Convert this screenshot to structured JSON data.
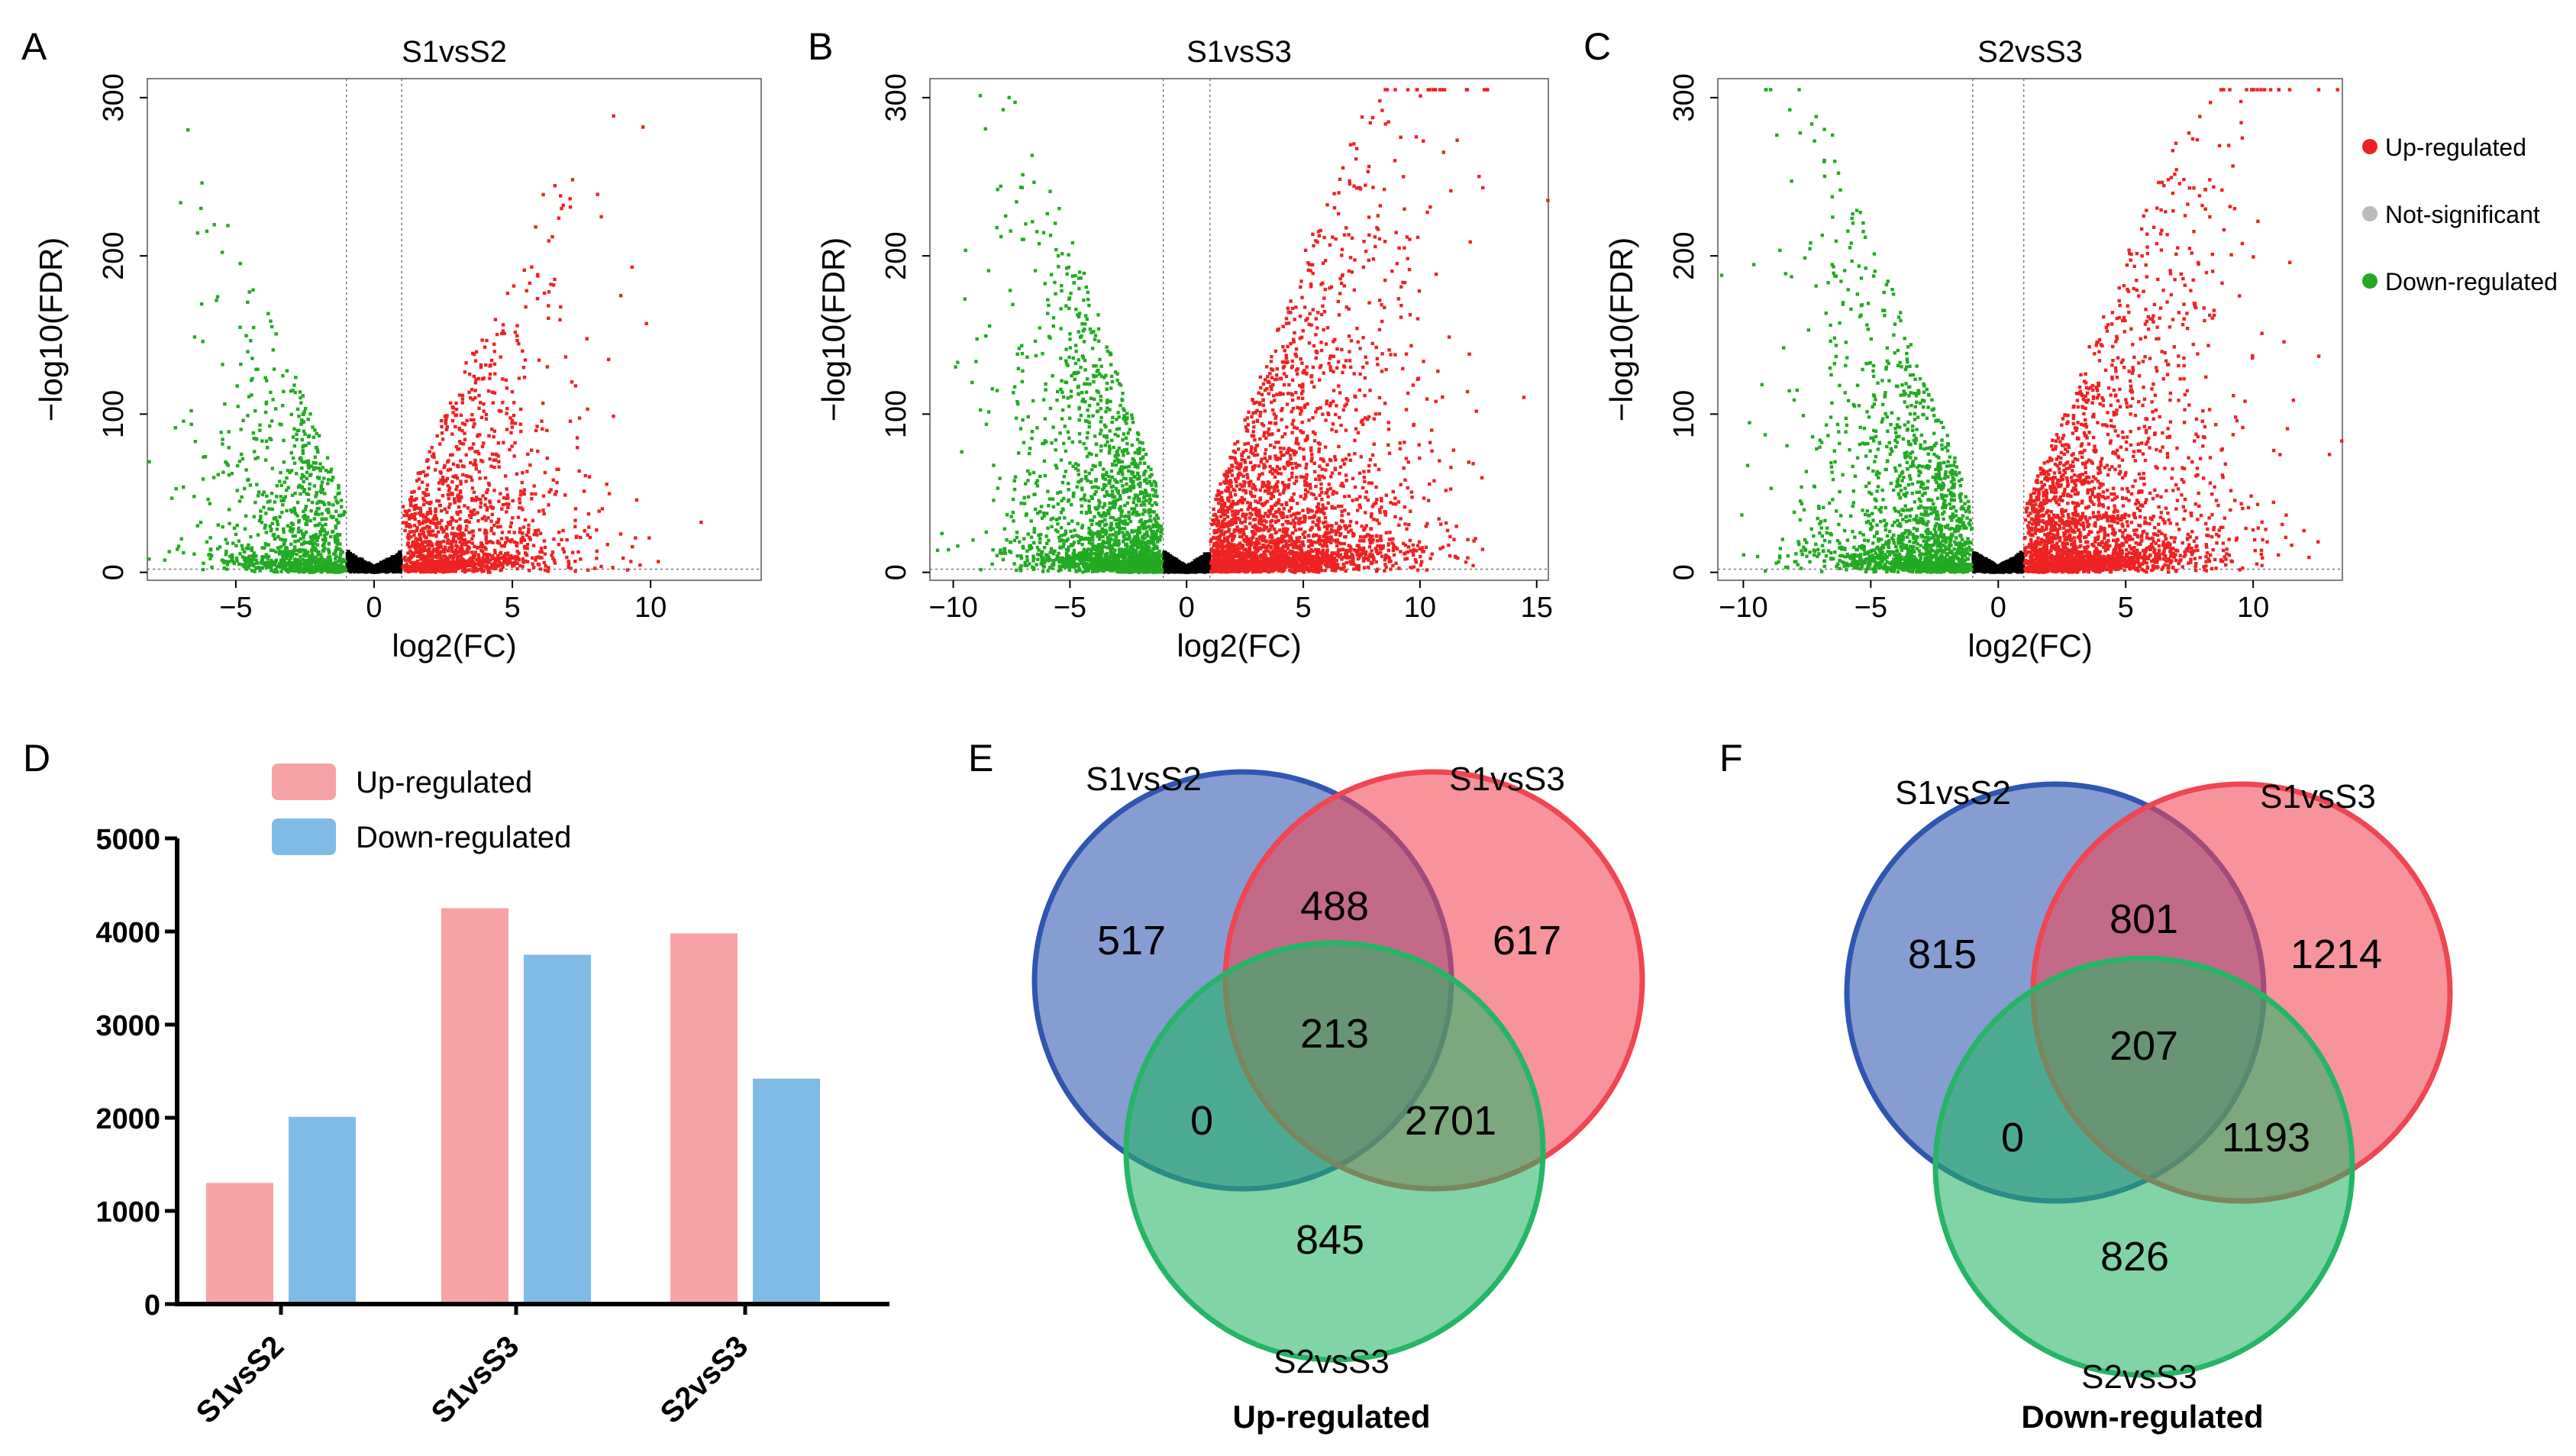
{
  "colors": {
    "up": "#ee2222",
    "not_significant": "#000000",
    "legend_not_significant": "#bbbbbb",
    "down": "#22aa22",
    "bar_up": "#f7a3a6",
    "bar_down": "#80bbe6",
    "venn_s1vss2": "#2f56b0",
    "venn_s1vss3": "#f04552",
    "venn_s2vss3": "#26b566"
  },
  "chart_data": [
    {
      "panel": "A",
      "type": "scatter",
      "title": "S1vsS2",
      "xlabel": "log2(FC)",
      "ylabel": "−log10(FDR)",
      "xlim": [
        -8.2,
        14
      ],
      "ylim": [
        -5,
        312
      ],
      "xticks": [
        -5,
        0,
        5,
        10
      ],
      "xtick_labels": [
        "−5",
        "0",
        "5",
        "10"
      ],
      "yticks": [
        0,
        100,
        200,
        300
      ],
      "ytick_labels": [
        "0",
        "100",
        "200",
        "300"
      ],
      "fc_threshold": 1,
      "fdr_threshold_line": 2,
      "x_spread": [
        7.5,
        9
      ],
      "y_max": 300,
      "density": 1.0
    },
    {
      "panel": "B",
      "type": "scatter",
      "title": "S1vsS3",
      "xlabel": "log2(FC)",
      "ylabel": "−log10(FDR)",
      "xlim": [
        -11,
        15.5
      ],
      "ylim": [
        -5,
        312
      ],
      "xticks": [
        -10,
        -5,
        0,
        5,
        10,
        15
      ],
      "xtick_labels": [
        "−10",
        "−5",
        "0",
        "5",
        "10",
        "15"
      ],
      "yticks": [
        0,
        100,
        200,
        300
      ],
      "ytick_labels": [
        "0",
        "100",
        "200",
        "300"
      ],
      "fc_threshold": 1,
      "fdr_threshold_line": 2,
      "x_spread": [
        10,
        13
      ],
      "y_max": 305,
      "density": 2.0
    },
    {
      "panel": "C",
      "type": "scatter",
      "title": "S2vsS3",
      "xlabel": "log2(FC)",
      "ylabel": "−log10(FDR)",
      "xlim": [
        -11,
        13.5
      ],
      "ylim": [
        -5,
        312
      ],
      "xticks": [
        -10,
        -5,
        0,
        5,
        10
      ],
      "xtick_labels": [
        "−10",
        "−5",
        "0",
        "5",
        "10"
      ],
      "yticks": [
        0,
        100,
        200,
        300
      ],
      "ytick_labels": [
        "0",
        "100",
        "200",
        "300"
      ],
      "fc_threshold": 1,
      "fdr_threshold_line": 2,
      "x_spread": [
        10,
        12
      ],
      "y_max": 305,
      "density": 1.7
    },
    {
      "panel": "D",
      "type": "bar",
      "categories": [
        "S1vsS2",
        "S1vsS3",
        "S2vsS3"
      ],
      "series": [
        {
          "name": "Up-regulated",
          "values": [
            1300,
            4250,
            3980
          ]
        },
        {
          "name": "Down-regulated",
          "values": [
            2010,
            3750,
            2420
          ]
        }
      ],
      "ylim": [
        0,
        5000
      ],
      "yticks": [
        0,
        1000,
        2000,
        3000,
        4000,
        5000
      ],
      "ytick_labels": [
        "0",
        "1000",
        "2000",
        "3000",
        "4000",
        "5000"
      ]
    },
    {
      "panel": "E",
      "type": "venn",
      "caption": "Up-regulated",
      "sets": [
        "S1vsS2",
        "S1vsS3",
        "S2vsS3"
      ],
      "regions": {
        "only_a": "517",
        "only_b": "617",
        "only_c": "845",
        "ab": "488",
        "ac": "0",
        "bc": "2701",
        "abc": "213"
      }
    },
    {
      "panel": "F",
      "type": "venn",
      "caption": "Down-regulated",
      "sets": [
        "S1vsS2",
        "S1vsS3",
        "S2vsS3"
      ],
      "regions": {
        "only_a": "815",
        "only_b": "1214",
        "only_c": "826",
        "ab": "801",
        "ac": "0",
        "bc": "1193",
        "abc": "207"
      }
    }
  ],
  "panel_letters": [
    "A",
    "B",
    "C",
    "D",
    "E",
    "F"
  ],
  "volcano_legend": {
    "items": [
      {
        "label": "Up-regulated",
        "color_key": "up"
      },
      {
        "label": "Not-significant",
        "color_key": "legend_not_significant"
      },
      {
        "label": "Down-regulated",
        "color_key": "down"
      }
    ]
  }
}
